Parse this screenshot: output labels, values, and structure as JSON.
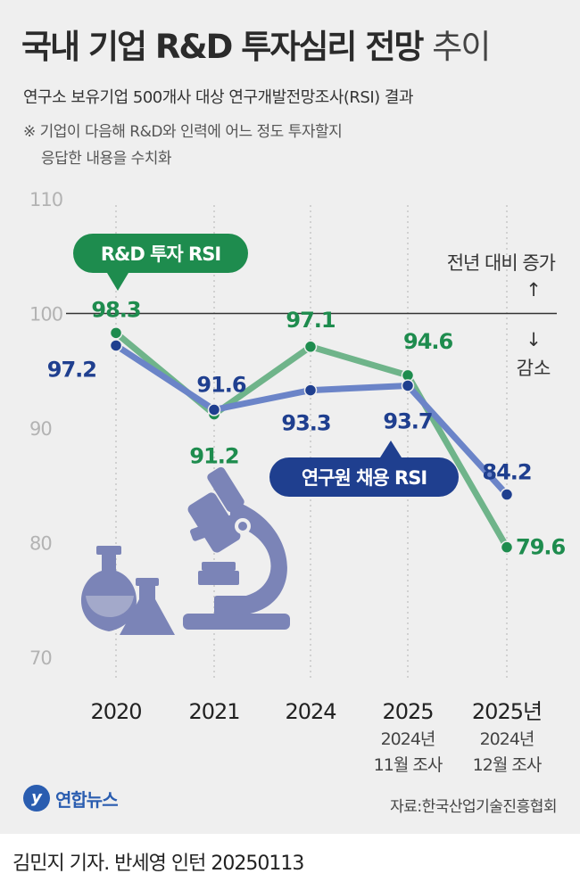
{
  "header": {
    "title_bold": "국내 기업 R&D 투자심리 전망",
    "title_light": "추이",
    "subtitle": "연구소 보유기업 500개사 대상 연구개발전망조사(RSI) 결과",
    "note_line1": "※ 기업이 다음해 R&D와 인력에 어느 정도 투자할지",
    "note_line2": "응답한 내용을 수치화"
  },
  "annotations": {
    "increase": "전년 대비 증가",
    "increase_arrow": "↑",
    "decrease_arrow": "↓",
    "decrease": "감소"
  },
  "chart_data": {
    "type": "line",
    "categories": [
      "2020",
      "2021",
      "2024",
      "2025",
      "2025년"
    ],
    "category_sublabels": [
      "",
      "",
      "",
      "2024년\n11월 조사",
      "2024년\n12월 조사"
    ],
    "ylim": [
      70,
      110
    ],
    "yticks": [
      70,
      80,
      90,
      100,
      110
    ],
    "reference_line": 100,
    "grid": "vertical-dotted",
    "series": [
      {
        "name": "R&D 투자 RSI",
        "color": "#6fb48a",
        "marker_color": "#1e8c4e",
        "values": [
          98.3,
          91.2,
          97.1,
          94.6,
          79.6
        ]
      },
      {
        "name": "연구원 채용 RSI",
        "color": "#6b84c8",
        "marker_color": "#1f3f8f",
        "values": [
          97.2,
          91.6,
          93.3,
          93.7,
          84.2
        ]
      }
    ]
  },
  "colors": {
    "background": "#efefef",
    "green": "#1e8c4e",
    "blue": "#1f3f8f",
    "illustration": "#7b84b7"
  },
  "footer": {
    "logo_mark": "y",
    "logo_text": "연합뉴스",
    "source": "자료:한국산업기술진흥협회",
    "credit": "김민지 기자. 반세영 인턴  20250113"
  },
  "icons": [
    "flask-icon",
    "microscope-icon"
  ]
}
